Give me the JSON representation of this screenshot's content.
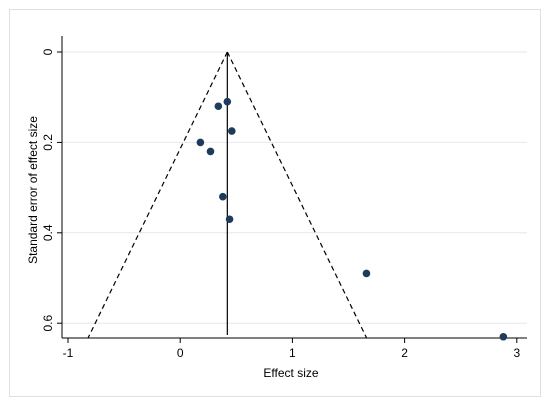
{
  "chart_data": {
    "type": "scatter",
    "title": "",
    "xlabel": "Effect size",
    "ylabel": "Standard error of effect size",
    "xlim": [
      -1.1,
      3.1
    ],
    "ylim": [
      0,
      0.64
    ],
    "y_reversed": true,
    "x_ticks": [
      "-1",
      "0",
      "1",
      "2",
      "3"
    ],
    "y_ticks": [
      "0",
      "0.2",
      "0.4",
      "0.6"
    ],
    "x_tick_values": [
      -1,
      0,
      1,
      2,
      3
    ],
    "y_tick_values": [
      0,
      0.2,
      0.4,
      0.6
    ],
    "grid": "horizontal",
    "points": [
      {
        "x": 0.42,
        "y": 0.11
      },
      {
        "x": 0.34,
        "y": 0.12
      },
      {
        "x": 0.46,
        "y": 0.175
      },
      {
        "x": 0.18,
        "y": 0.2
      },
      {
        "x": 0.27,
        "y": 0.22
      },
      {
        "x": 0.38,
        "y": 0.32
      },
      {
        "x": 0.44,
        "y": 0.37
      },
      {
        "x": 1.66,
        "y": 0.49
      },
      {
        "x": 2.88,
        "y": 0.63
      }
    ],
    "pooled_effect": 0.42,
    "funnel_lines": [
      {
        "name": "left",
        "from": {
          "x": 0.42,
          "y": 0
        },
        "to": {
          "x": -0.82,
          "y": 0.632
        }
      },
      {
        "name": "right",
        "from": {
          "x": 0.42,
          "y": 0
        },
        "to": {
          "x": 1.66,
          "y": 0.632
        }
      }
    ],
    "colors": {
      "point": "#1f3b5c",
      "grid": "#e3e9ee",
      "axis": "#000000",
      "frame": "#d9e0e6"
    }
  }
}
